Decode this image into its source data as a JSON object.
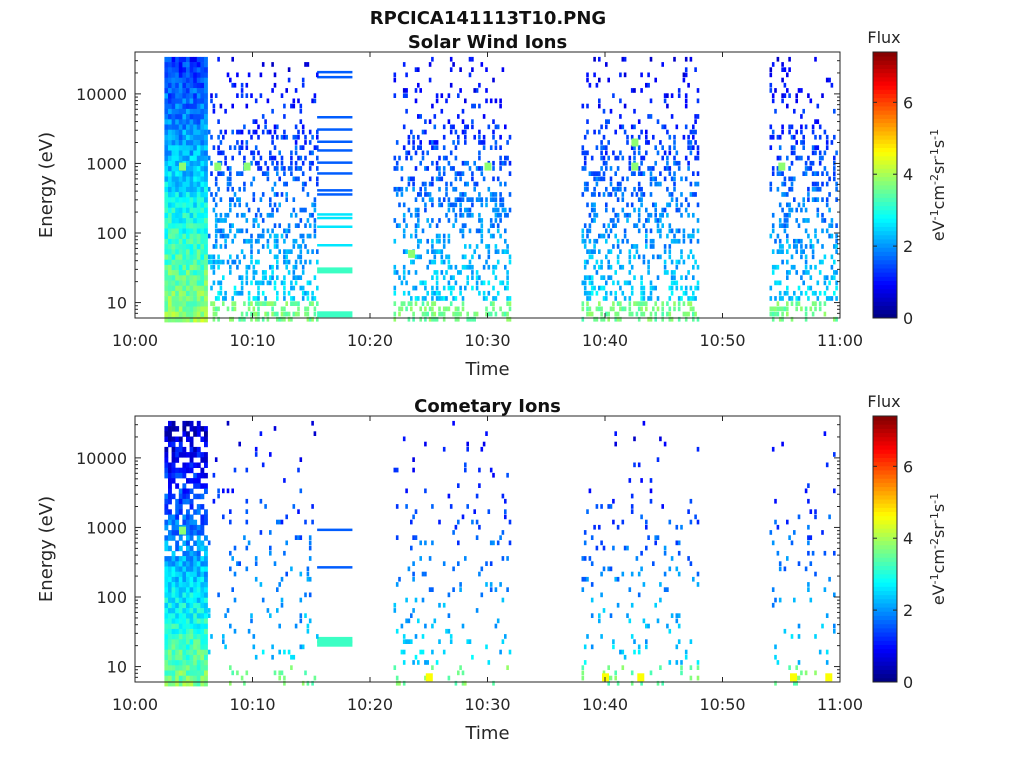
{
  "main_title": "RPCICA141113T10.PNG",
  "colorbar": {
    "title": "Flux",
    "label_html": "eV<tspan baseline-shift=\"super\" font-size=\"11\">-1</tspan>cm<tspan baseline-shift=\"super\" font-size=\"11\">-2</tspan>sr<tspan baseline-shift=\"super\" font-size=\"11\">-1</tspan>s<tspan baseline-shift=\"super\" font-size=\"11\">-1</tspan>",
    "label_text": "eV-1cm-2sr-1s-1",
    "ticks": [
      "0",
      "2",
      "4",
      "6"
    ],
    "range": [
      0,
      7.4
    ],
    "colormap": "jet"
  },
  "chart_data": [
    {
      "type": "heatmap",
      "title": "Solar Wind Ions",
      "xlabel": "Time",
      "ylabel": "Energy (eV)",
      "x_ticks": [
        "10:00",
        "10:10",
        "10:20",
        "10:30",
        "10:40",
        "10:50",
        "11:00"
      ],
      "y_ticks": [
        "10",
        "100",
        "1000",
        "10000"
      ],
      "y_scale": "log",
      "y_range": [
        6,
        40000
      ],
      "x_range": [
        "10:00",
        "11:00"
      ],
      "continuous_block": [
        "10:02.5",
        "10:06"
      ],
      "data_gaps": [
        [
          "10:18.5",
          "10:22"
        ],
        [
          "10:32",
          "10:38"
        ],
        [
          "10:48",
          "10:54"
        ]
      ],
      "line_levels_block": {
        "range": [
          "10:15.5",
          "10:18.5"
        ],
        "energies": [
          20000,
          17000,
          4500,
          3000,
          2000,
          1500,
          1000,
          700,
          400,
          350,
          180,
          160,
          120,
          65,
          30,
          7
        ]
      },
      "high_flux_spots": [
        {
          "time": "10:04",
          "energy": 900
        },
        {
          "time": "10:07",
          "energy": 900
        },
        {
          "time": "10:09.5",
          "energy": 900
        },
        {
          "time": "10:23.5",
          "energy": 50
        },
        {
          "time": "10:30",
          "energy": 900
        },
        {
          "time": "10:42.5",
          "energy": 900
        },
        {
          "time": "10:42.5",
          "energy": 2000
        },
        {
          "time": "10:55",
          "energy": 900
        }
      ]
    },
    {
      "type": "heatmap",
      "title": "Cometary Ions",
      "xlabel": "Time",
      "ylabel": "Energy (eV)",
      "x_ticks": [
        "10:00",
        "10:10",
        "10:20",
        "10:30",
        "10:40",
        "10:50",
        "11:00"
      ],
      "y_ticks": [
        "10",
        "100",
        "1000",
        "10000"
      ],
      "y_scale": "log",
      "y_range": [
        6,
        40000
      ],
      "x_range": [
        "10:00",
        "11:00"
      ],
      "continuous_block": [
        "10:02.5",
        "10:06"
      ],
      "data_gaps": [
        [
          "10:18.5",
          "10:22"
        ],
        [
          "10:32",
          "10:38"
        ],
        [
          "10:48",
          "10:54"
        ]
      ],
      "line_levels_block": {
        "range": [
          "10:15.5",
          "10:18.5"
        ],
        "energies": [
          900,
          260,
          25,
          22
        ]
      },
      "high_flux_spots": [
        {
          "time": "10:04",
          "energy": 900
        },
        {
          "time": "10:25",
          "energy": 7
        },
        {
          "time": "10:40",
          "energy": 7
        },
        {
          "time": "10:43",
          "energy": 7
        },
        {
          "time": "10:56",
          "energy": 7
        },
        {
          "time": "10:59",
          "energy": 7
        }
      ]
    }
  ]
}
